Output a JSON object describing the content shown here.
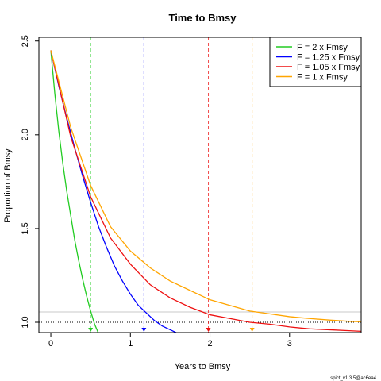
{
  "chart_data": {
    "type": "line",
    "title": "Time to Bmsy",
    "xlabel": "Years to Bmsy",
    "ylabel": "Proportion of Bmsy",
    "xlim": [
      -0.15,
      3.9
    ],
    "ylim": [
      0.945,
      2.52
    ],
    "xticks": [
      0,
      1,
      2,
      3
    ],
    "yticks": [
      1.0,
      1.5,
      2.0,
      2.5
    ],
    "ytick_labels": [
      "1.0",
      "1.5",
      "2.0",
      "2.5"
    ],
    "legend_position": "top-right",
    "reference_lines": {
      "dotted_horizontal_y": 1.0,
      "grey_horizontal_y": 1.055
    },
    "series": [
      {
        "name": "F = 2 x Fmsy",
        "color": "#22cc22",
        "x": [
          0,
          0.05,
          0.1,
          0.15,
          0.2,
          0.25,
          0.3,
          0.35,
          0.4,
          0.45,
          0.5,
          0.55,
          0.6
        ],
        "y": [
          2.45,
          2.22,
          2.02,
          1.85,
          1.7,
          1.57,
          1.44,
          1.33,
          1.23,
          1.14,
          1.06,
          0.99,
          0.94
        ],
        "time_to_bmsy": 0.5
      },
      {
        "name": "F = 1.25 x Fmsy",
        "color": "#0000ff",
        "x": [
          0,
          0.1,
          0.2,
          0.3,
          0.4,
          0.5,
          0.6,
          0.7,
          0.8,
          0.9,
          1.0,
          1.1,
          1.2,
          1.3,
          1.4,
          1.5,
          1.6
        ],
        "y": [
          2.45,
          2.26,
          2.09,
          1.93,
          1.78,
          1.64,
          1.51,
          1.4,
          1.3,
          1.22,
          1.15,
          1.09,
          1.05,
          1.01,
          0.98,
          0.96,
          0.94
        ],
        "time_to_bmsy": 1.17
      },
      {
        "name": "F = 1.05 x Fmsy",
        "color": "#ee1111",
        "x": [
          0,
          0.25,
          0.5,
          0.75,
          1.0,
          1.25,
          1.5,
          1.75,
          2.0,
          2.25,
          2.5,
          2.75,
          3.0,
          3.25,
          3.5,
          3.75,
          3.9
        ],
        "y": [
          2.45,
          1.99,
          1.67,
          1.45,
          1.31,
          1.2,
          1.13,
          1.08,
          1.04,
          1.02,
          1.0,
          0.99,
          0.975,
          0.965,
          0.96,
          0.955,
          0.952
        ],
        "time_to_bmsy": 1.98
      },
      {
        "name": "F = 1 x Fmsy",
        "color": "#ffa500",
        "x": [
          0,
          0.25,
          0.5,
          0.75,
          1.0,
          1.25,
          1.5,
          1.75,
          2.0,
          2.25,
          2.5,
          2.75,
          3.0,
          3.25,
          3.5,
          3.75,
          3.9
        ],
        "y": [
          2.45,
          2.04,
          1.73,
          1.51,
          1.38,
          1.29,
          1.22,
          1.17,
          1.12,
          1.09,
          1.06,
          1.045,
          1.03,
          1.02,
          1.012,
          1.005,
          1.003
        ],
        "time_to_bmsy": 2.53
      }
    ]
  },
  "footer_text": "spict_v1.3.5@ac6ea4"
}
